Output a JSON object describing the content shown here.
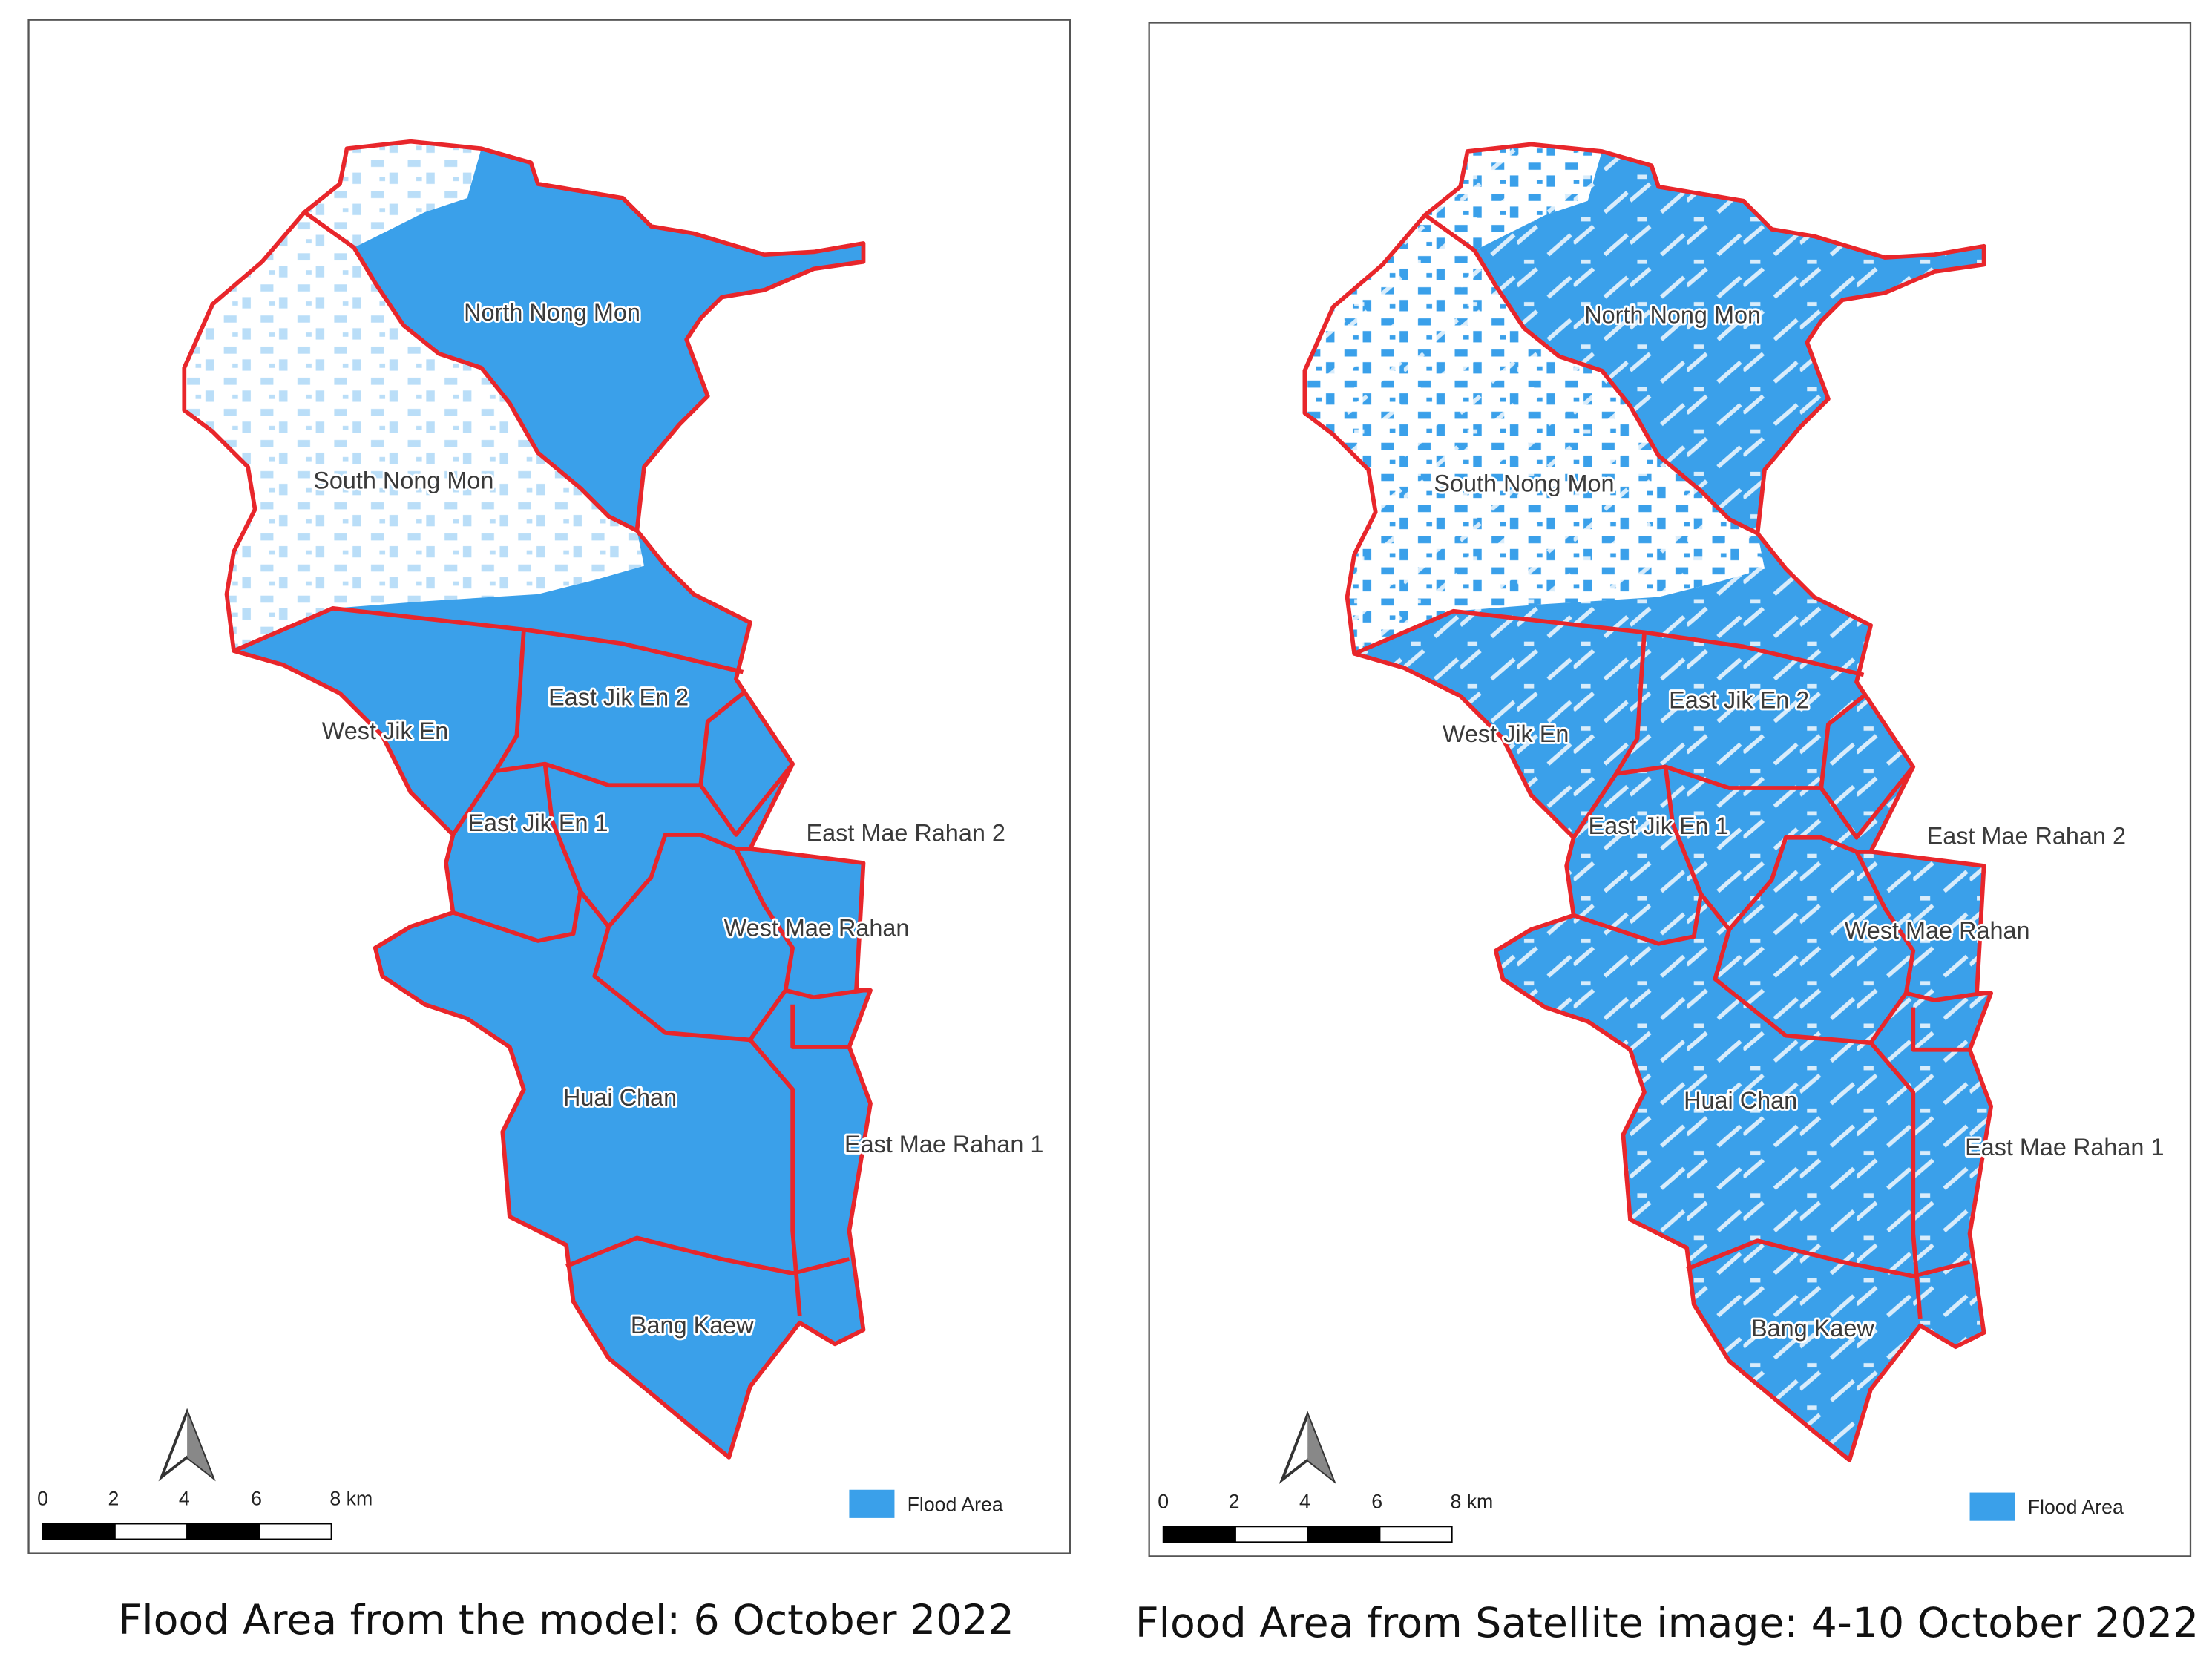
{
  "maps": [
    {
      "caption": "Flood Area from the model: 6 October 2022",
      "districts": [
        "North Nong Mon",
        "South Nong Mon",
        "West Jik En",
        "East Jik En 2",
        "East Jik En 1",
        "East Mae Rahan 2",
        "West Mae Rahan",
        "Huai Chan",
        "East Mae Rahan 1",
        "Bang Kaew"
      ],
      "scale_ticks": [
        "0",
        "2",
        "4",
        "6",
        "8 km"
      ],
      "legend": "Flood Area"
    },
    {
      "caption": "Flood Area from Satellite image: 4-10 October 2022",
      "districts": [
        "North Nong Mon",
        "South Nong Mon",
        "West Jik En",
        "East Jik En 2",
        "East Jik En 1",
        "East Mae Rahan 2",
        "West Mae Rahan",
        "Huai Chan",
        "East Mae Rahan 1",
        "Bang Kaew"
      ],
      "scale_ticks": [
        "0",
        "2",
        "4",
        "6",
        "8 km"
      ],
      "legend": "Flood Area"
    }
  ]
}
